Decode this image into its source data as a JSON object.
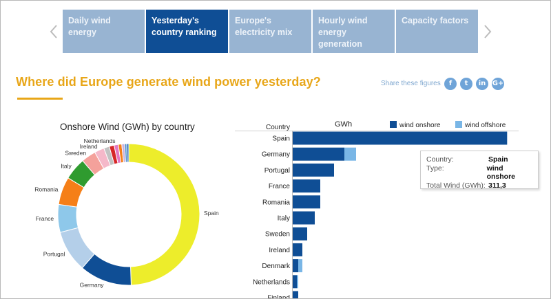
{
  "tabs": [
    {
      "label": "Daily wind energy",
      "active": false
    },
    {
      "label": "Yesterday's country ranking",
      "active": true
    },
    {
      "label": "Europe's electricity mix",
      "active": false
    },
    {
      "label": "Hourly wind energy generation",
      "active": false
    },
    {
      "label": "Capacity factors",
      "active": false
    }
  ],
  "page": {
    "title": "Where did Europe generate wind power yesterday?",
    "share_label": "Share these figures",
    "social": [
      "f",
      "t",
      "in",
      "G+"
    ]
  },
  "colors": {
    "accent": "#e8a618",
    "tab": "#98b4d2",
    "tab_active": "#0f4e95",
    "onshore": "#0f4e95",
    "offshore": "#79b6e6"
  },
  "tooltip": {
    "country_label": "Country:",
    "country": "Spain",
    "type_label": "Type:",
    "type": "wind onshore",
    "total_label": "Total Wind (GWh):",
    "total": "311,3"
  },
  "chart_data": [
    {
      "type": "pie",
      "title": "Onshore Wind (GWh) by country",
      "slices": [
        {
          "label": "Spain",
          "value": 311.3,
          "color": "#eded2b"
        },
        {
          "label": "Germany",
          "value": 75,
          "color": "#0f4e95"
        },
        {
          "label": "Portugal",
          "value": 60,
          "color": "#b4cfe9"
        },
        {
          "label": "France",
          "value": 40,
          "color": "#8ec8ea"
        },
        {
          "label": "Romania",
          "value": 40,
          "color": "#f57f18"
        },
        {
          "label": "Italy",
          "value": 32,
          "color": "#2f9b2f"
        },
        {
          "label": "Sweden",
          "value": 21,
          "color": "#f4a19b"
        },
        {
          "label": "Ireland",
          "value": 14,
          "color": "#f5b8c9"
        },
        {
          "label": "",
          "value": 8,
          "color": "#c2c2c2"
        },
        {
          "label": "",
          "value": 7,
          "color": "#d62728"
        },
        {
          "label": "Netherlands",
          "value": 6,
          "color": "#e377c2"
        },
        {
          "label": "",
          "value": 5,
          "color": "#f57f18"
        },
        {
          "label": "",
          "value": 4,
          "color": "#c8b0d9"
        },
        {
          "label": "",
          "value": 3,
          "color": "#4a8fcf"
        },
        {
          "label": "",
          "value": 3,
          "color": "#2f6eb5"
        }
      ]
    },
    {
      "type": "bar",
      "orientation": "horizontal",
      "stacked": true,
      "xlabel": "GWh",
      "ylabel": "Country",
      "xlim": [
        0,
        320
      ],
      "categories": [
        "Spain",
        "Germany",
        "Portugal",
        "France",
        "Romania",
        "Italy",
        "Sweden",
        "Ireland",
        "Denmark",
        "Netherlands",
        "Finland"
      ],
      "series": [
        {
          "name": "wind onshore",
          "values": [
            311.3,
            75,
            60,
            40,
            40,
            32,
            21,
            14,
            8,
            6,
            8
          ]
        },
        {
          "name": "wind offshore",
          "values": [
            0,
            17,
            0,
            0,
            0,
            0,
            0,
            0,
            6,
            2,
            0
          ]
        }
      ]
    }
  ]
}
